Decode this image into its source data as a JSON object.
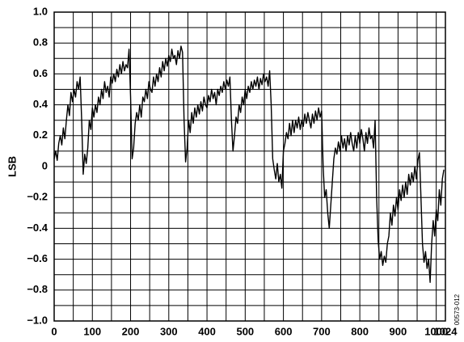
{
  "chart_data": {
    "type": "line",
    "y_label": "LSB",
    "side_note": "00573-012",
    "color": "#000000",
    "grid": true,
    "xlim": [
      0,
      1024
    ],
    "ylim": [
      -1,
      1
    ],
    "xticks": [
      0,
      100,
      200,
      300,
      400,
      500,
      600,
      700,
      800,
      900,
      1000,
      1024
    ],
    "yticks": [
      {
        "value": 1,
        "label": "1.0"
      },
      0.8,
      0.6,
      0.4,
      0.2,
      0,
      {
        "value": -0.2,
        "label": "−0.2"
      },
      {
        "value": -0.4,
        "label": "−0.4"
      },
      {
        "value": -0.6,
        "label": "−0.6"
      },
      {
        "value": -0.8,
        "label": "−0.8"
      },
      {
        "value": -1,
        "label": "−1.0"
      }
    ],
    "xgrid": [
      50,
      100,
      150,
      200,
      250,
      300,
      350,
      400,
      450,
      500,
      550,
      600,
      650,
      700,
      750,
      800,
      850,
      900,
      950,
      1000
    ],
    "ygrid": [
      -0.9,
      -0.8,
      -0.7,
      -0.6,
      -0.5,
      -0.4,
      -0.3,
      -0.2,
      -0.1,
      0,
      0.1,
      0.2,
      0.3,
      0.4,
      0.5,
      0.6,
      0.7,
      0.8,
      0.9
    ],
    "x": [
      0,
      4,
      8,
      12,
      16,
      20,
      24,
      28,
      32,
      36,
      40,
      44,
      48,
      52,
      56,
      60,
      64,
      68,
      72,
      76,
      80,
      84,
      88,
      92,
      96,
      100,
      104,
      108,
      112,
      116,
      120,
      124,
      128,
      132,
      136,
      140,
      144,
      148,
      152,
      156,
      160,
      164,
      168,
      172,
      176,
      180,
      184,
      188,
      192,
      196,
      200,
      204,
      208,
      212,
      216,
      220,
      224,
      228,
      232,
      236,
      240,
      244,
      248,
      252,
      256,
      260,
      264,
      268,
      272,
      276,
      280,
      284,
      288,
      292,
      296,
      300,
      304,
      308,
      312,
      316,
      320,
      324,
      328,
      332,
      336,
      340,
      344,
      348,
      352,
      356,
      360,
      364,
      368,
      372,
      376,
      380,
      384,
      388,
      392,
      396,
      400,
      404,
      408,
      412,
      416,
      420,
      424,
      428,
      432,
      436,
      440,
      444,
      448,
      452,
      456,
      460,
      464,
      468,
      472,
      476,
      480,
      484,
      488,
      492,
      496,
      500,
      504,
      508,
      512,
      516,
      520,
      524,
      528,
      532,
      536,
      540,
      544,
      548,
      552,
      556,
      560,
      564,
      568,
      572,
      576,
      580,
      584,
      588,
      592,
      596,
      600,
      604,
      608,
      612,
      616,
      620,
      624,
      628,
      632,
      636,
      640,
      644,
      648,
      652,
      656,
      660,
      664,
      668,
      672,
      676,
      680,
      684,
      688,
      692,
      696,
      700,
      704,
      708,
      712,
      716,
      720,
      724,
      728,
      732,
      736,
      740,
      744,
      748,
      752,
      756,
      760,
      764,
      768,
      772,
      776,
      780,
      784,
      788,
      792,
      796,
      800,
      804,
      808,
      812,
      816,
      820,
      824,
      828,
      832,
      836,
      840,
      844,
      848,
      852,
      856,
      860,
      864,
      868,
      872,
      876,
      880,
      884,
      888,
      892,
      896,
      900,
      904,
      908,
      912,
      916,
      920,
      924,
      928,
      932,
      936,
      940,
      944,
      948,
      952,
      956,
      960,
      964,
      968,
      972,
      976,
      980,
      984,
      988,
      992,
      996,
      1000,
      1004,
      1008,
      1012,
      1016,
      1020
    ],
    "values": [
      0.05,
      0.1,
      0.04,
      0.15,
      0.2,
      0.14,
      0.25,
      0.18,
      0.3,
      0.4,
      0.33,
      0.48,
      0.42,
      0.5,
      0.45,
      0.55,
      0.5,
      0.58,
      0.3,
      -0.05,
      0.08,
      0.02,
      0.12,
      0.3,
      0.24,
      0.38,
      0.32,
      0.4,
      0.35,
      0.45,
      0.4,
      0.5,
      0.44,
      0.55,
      0.48,
      0.52,
      0.45,
      0.58,
      0.54,
      0.6,
      0.55,
      0.63,
      0.58,
      0.66,
      0.6,
      0.68,
      0.62,
      0.66,
      0.64,
      0.76,
      0.45,
      0.05,
      0.12,
      0.28,
      0.35,
      0.3,
      0.4,
      0.32,
      0.45,
      0.42,
      0.5,
      0.44,
      0.55,
      0.5,
      0.48,
      0.58,
      0.52,
      0.6,
      0.55,
      0.64,
      0.58,
      0.68,
      0.62,
      0.7,
      0.65,
      0.72,
      0.68,
      0.76,
      0.7,
      0.72,
      0.66,
      0.75,
      0.7,
      0.78,
      0.74,
      0.3,
      0.03,
      0.12,
      0.3,
      0.22,
      0.35,
      0.28,
      0.38,
      0.32,
      0.4,
      0.34,
      0.42,
      0.36,
      0.45,
      0.4,
      0.38,
      0.46,
      0.42,
      0.5,
      0.44,
      0.48,
      0.4,
      0.5,
      0.46,
      0.52,
      0.48,
      0.55,
      0.5,
      0.56,
      0.52,
      0.58,
      0.3,
      0.1,
      0.2,
      0.32,
      0.28,
      0.4,
      0.35,
      0.45,
      0.4,
      0.5,
      0.44,
      0.52,
      0.48,
      0.55,
      0.5,
      0.56,
      0.52,
      0.58,
      0.5,
      0.57,
      0.53,
      0.6,
      0.55,
      0.58,
      0.52,
      0.62,
      0.4,
      0.05,
      -0.02,
      -0.08,
      0.02,
      -0.1,
      -0.05,
      -0.14,
      0.1,
      0.15,
      0.22,
      0.18,
      0.28,
      0.2,
      0.3,
      0.22,
      0.3,
      0.25,
      0.32,
      0.24,
      0.3,
      0.26,
      0.34,
      0.28,
      0.35,
      0.3,
      0.25,
      0.34,
      0.28,
      0.36,
      0.3,
      0.38,
      0.32,
      0.36,
      0.0,
      -0.2,
      -0.15,
      -0.3,
      -0.4,
      -0.25,
      -0.1,
      0.05,
      0.12,
      0.08,
      0.16,
      0.1,
      0.2,
      0.12,
      0.18,
      0.1,
      0.2,
      0.14,
      0.22,
      0.15,
      0.1,
      0.2,
      0.12,
      0.22,
      0.15,
      0.24,
      0.18,
      0.1,
      0.22,
      0.15,
      0.25,
      0.18,
      0.2,
      0.12,
      0.3,
      -0.2,
      -0.48,
      -0.6,
      -0.55,
      -0.64,
      -0.58,
      -0.62,
      -0.5,
      -0.45,
      -0.3,
      -0.38,
      -0.25,
      -0.32,
      -0.2,
      -0.28,
      -0.15,
      -0.22,
      -0.12,
      -0.2,
      -0.1,
      -0.18,
      -0.05,
      -0.12,
      -0.04,
      -0.1,
      0.0,
      -0.08,
      0.04,
      0.09,
      -0.2,
      -0.5,
      -0.62,
      -0.55,
      -0.66,
      -0.6,
      -0.75,
      -0.5,
      -0.35,
      -0.45,
      -0.28,
      -0.35,
      -0.15,
      -0.25,
      -0.08,
      -0.02
    ]
  }
}
